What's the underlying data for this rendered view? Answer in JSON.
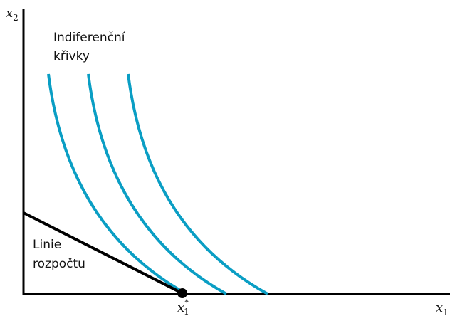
{
  "axes": {
    "y_label": "x",
    "y_label_sub": "2",
    "x_label": "x",
    "x_label_sub": "1"
  },
  "labels": {
    "indifference_line1": "Indiferenční",
    "indifference_line2": "křivky",
    "budget_line1": "Linie",
    "budget_line2": "rozpočtu",
    "optimum": "x",
    "optimum_sub": "1",
    "optimum_sup": "*"
  },
  "colors": {
    "curve": "#0a9ec4",
    "axis": "#000000",
    "budget": "#000000"
  }
}
